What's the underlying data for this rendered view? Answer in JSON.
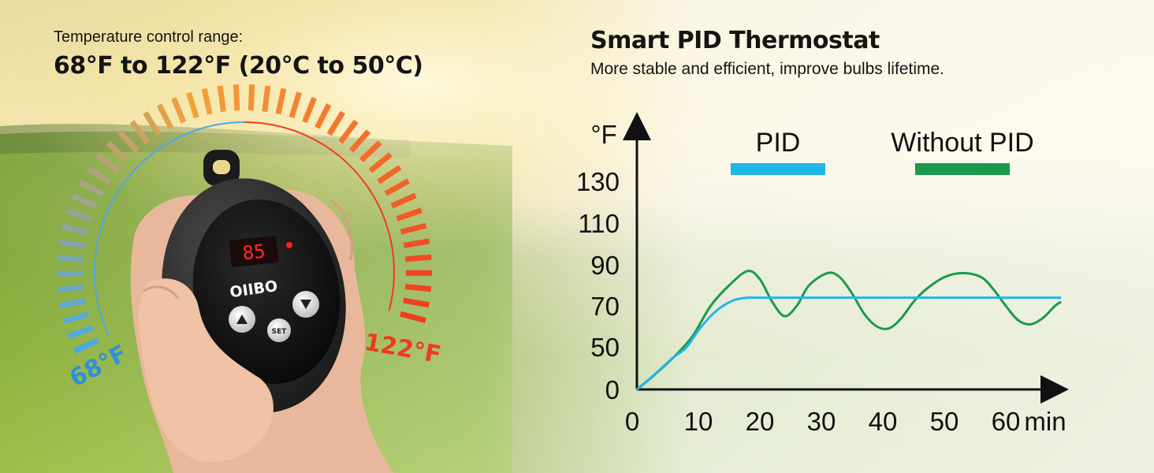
{
  "header_left": {
    "label": "Temperature control range:",
    "value": "68°F to 122°F  (20°C to 50°C)"
  },
  "header_right": {
    "title": "Smart PID Thermostat",
    "subtitle": "More stable and efficient, improve bulbs lifetime."
  },
  "device": {
    "brand": "OIIBO",
    "display_value": "85",
    "set_button": "SET",
    "dial_min_label": "68°F",
    "dial_max_label": "122°F",
    "dial_colors": {
      "cold": "#4aa9e6",
      "mid": "#f2a13a",
      "hot": "#f03c1e"
    }
  },
  "chart_data": {
    "type": "line",
    "ylabel": "°F",
    "xlabel": "min",
    "xticks": [
      0,
      10,
      20,
      30,
      40,
      50,
      60
    ],
    "yticks": [
      0,
      50,
      70,
      90,
      110,
      130
    ],
    "xlim": [
      0,
      69
    ],
    "series": [
      {
        "name": "PID",
        "color": "#1fb7ea",
        "points": [
          [
            0,
            0
          ],
          [
            2,
            12
          ],
          [
            4,
            25
          ],
          [
            6,
            38
          ],
          [
            8,
            49
          ],
          [
            10,
            58
          ],
          [
            12,
            65
          ],
          [
            14,
            70
          ],
          [
            16,
            73
          ],
          [
            18,
            74
          ],
          [
            20,
            74
          ],
          [
            30,
            74
          ],
          [
            40,
            74
          ],
          [
            50,
            74
          ],
          [
            60,
            74
          ],
          [
            69,
            74
          ]
        ]
      },
      {
        "name": "Without PID",
        "color": "#1a9a4a",
        "points": [
          [
            0,
            0
          ],
          [
            3,
            18
          ],
          [
            6,
            38
          ],
          [
            9,
            55
          ],
          [
            12,
            70
          ],
          [
            15,
            80
          ],
          [
            18,
            87
          ],
          [
            20,
            83
          ],
          [
            22,
            72
          ],
          [
            24,
            65
          ],
          [
            26,
            70
          ],
          [
            28,
            80
          ],
          [
            31,
            86
          ],
          [
            33,
            84
          ],
          [
            35,
            76
          ],
          [
            37,
            66
          ],
          [
            39,
            60
          ],
          [
            41,
            59
          ],
          [
            43,
            64
          ],
          [
            45,
            72
          ],
          [
            47,
            78
          ],
          [
            50,
            84
          ],
          [
            53,
            86
          ],
          [
            56,
            84
          ],
          [
            58,
            78
          ],
          [
            60,
            70
          ],
          [
            62,
            63
          ],
          [
            64,
            61
          ],
          [
            66,
            64
          ],
          [
            68,
            70
          ],
          [
            69,
            72
          ]
        ]
      }
    ]
  }
}
